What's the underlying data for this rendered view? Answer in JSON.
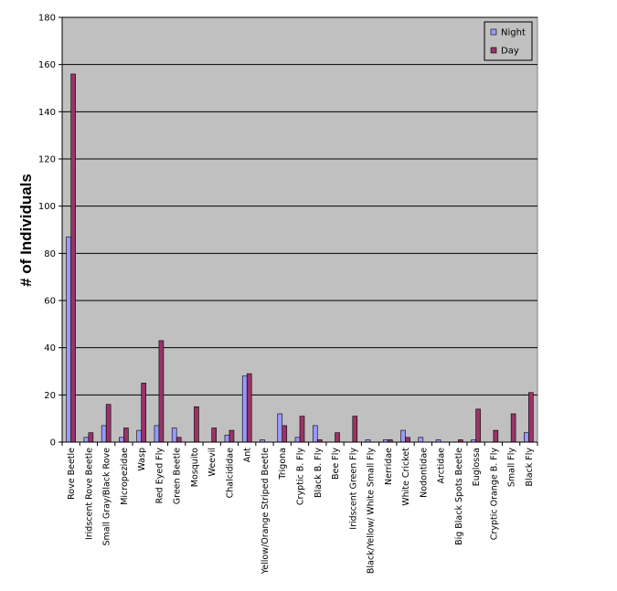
{
  "chart_data": {
    "type": "bar",
    "title": "",
    "xlabel": "",
    "ylabel": "# of Individuals",
    "ylim": [
      0,
      180
    ],
    "yticks": [
      0,
      20,
      40,
      60,
      80,
      100,
      120,
      140,
      160,
      180
    ],
    "grid": true,
    "legend_position": "top-right",
    "categories": [
      "Rove Beetle",
      "Iridscent Rove Beetle",
      "Small Gray/Black Rove",
      "Micropezidae",
      "Wasp",
      "Red Eyed Fly",
      "Green Beetle",
      "Mosquito",
      "Weevil",
      "Chalcididae",
      "Ant",
      "Yellow/Orange Striped Beetle",
      "Trigona",
      "Cryptic B.  Fly",
      "Black B.  Fly",
      "Bee Fly",
      "Iridscent Green Fly",
      "Black/Yellow/ White Small Fly",
      "Nerridae",
      "White Cricket",
      "Nodontidae",
      "Arctidae",
      "Big Black Spots Beetle",
      "Euglossa",
      "Cryptic Orange B.  Fly",
      "Small Fly",
      "Black Fly"
    ],
    "series": [
      {
        "name": "Night",
        "color": "#9999FF",
        "values": [
          87,
          2,
          7,
          2,
          5,
          7,
          6,
          0,
          0,
          3,
          28,
          1,
          12,
          2,
          7,
          0,
          0,
          1,
          1,
          5,
          2,
          1,
          0,
          1,
          0,
          0,
          4
        ]
      },
      {
        "name": "Day",
        "color": "#993366",
        "values": [
          156,
          4,
          16,
          6,
          25,
          43,
          2,
          15,
          6,
          5,
          29,
          0,
          7,
          11,
          1,
          4,
          11,
          0,
          1,
          2,
          0,
          0,
          1,
          14,
          5,
          12,
          21
        ]
      }
    ]
  },
  "colors": {
    "plot_background": "#C0C0C0",
    "gridline": "#000000",
    "bar_outline": "#000000"
  }
}
